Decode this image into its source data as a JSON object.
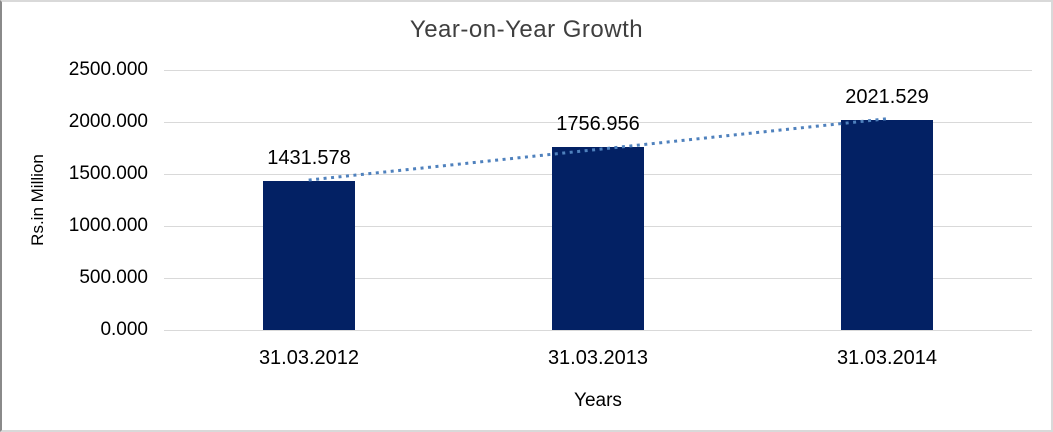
{
  "chart_data": {
    "type": "bar",
    "title": "Year-on-Year Growth",
    "xlabel": "Years",
    "ylabel": "Rs.in Million",
    "categories": [
      "31.03.2012",
      "31.03.2013",
      "31.03.2014"
    ],
    "values": [
      1431.578,
      1756.956,
      2021.529
    ],
    "data_labels": [
      "1431.578",
      "1756.956",
      "2021.529"
    ],
    "ylim": [
      0,
      2500
    ],
    "y_tick_step": 500,
    "y_tick_labels": [
      "0.000",
      "500.000",
      "1000.000",
      "1500.000",
      "2000.000",
      "2500.000"
    ],
    "grid": true,
    "legend": "none",
    "trendline": {
      "type": "linear",
      "style": "dotted"
    },
    "colors": {
      "bar": "#032164",
      "trendline": "#4f81bd",
      "gridline": "#d9d9d9",
      "title_text": "#3f3f3f",
      "label_text": "#000000",
      "frame_border": "#d9d9d9"
    }
  }
}
